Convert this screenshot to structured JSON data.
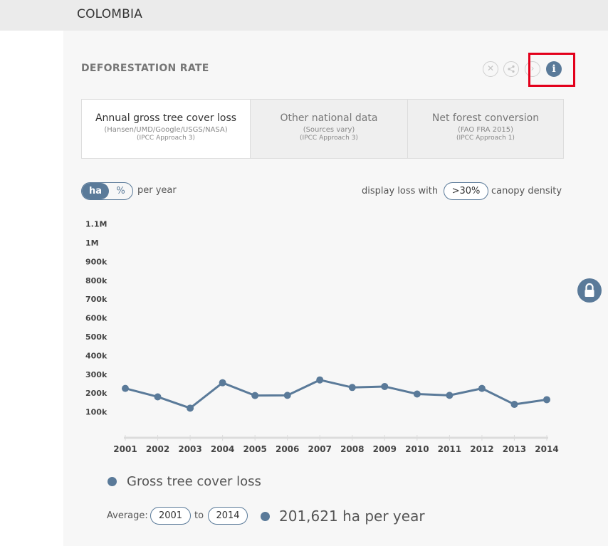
{
  "header": {
    "country": "COLOMBIA"
  },
  "widget": {
    "title": "DEFORESTATION RATE",
    "controls": [
      {
        "name": "close-icon",
        "glyph": "✕"
      },
      {
        "name": "share-icon",
        "glyph": "<"
      },
      {
        "name": "arrow-icon",
        "glyph": "›"
      },
      {
        "name": "info-icon",
        "glyph": "i"
      }
    ]
  },
  "tabs": [
    {
      "title": "Annual gross tree cover loss",
      "source": "(Hansen/UMD/Google/USGS/NASA)",
      "approach": "(IPCC Approach 3)",
      "active": true
    },
    {
      "title": "Other national data",
      "source": "(Sources vary)",
      "approach": "(IPCC Approach 3)",
      "active": false
    },
    {
      "title": "Net forest conversion",
      "source": "(FAO FRA 2015)",
      "approach": "(IPCC Approach 1)",
      "active": false
    }
  ],
  "units": {
    "ha": "ha",
    "pct": "%",
    "per_year": "per year"
  },
  "canopy": {
    "prefix": "display loss with",
    "value": ">30%",
    "suffix": "canopy density"
  },
  "chart_data": {
    "type": "line",
    "x": [
      "2001",
      "2002",
      "2003",
      "2004",
      "2005",
      "2006",
      "2007",
      "2008",
      "2009",
      "2010",
      "2011",
      "2012",
      "2013",
      "2014"
    ],
    "series": [
      {
        "name": "Gross tree cover loss",
        "values": [
          225000,
          180000,
          120000,
          255000,
          187000,
          188000,
          270000,
          230000,
          235000,
          195000,
          188000,
          225000,
          140000,
          165000
        ]
      }
    ],
    "yticks": [
      "100k",
      "200k",
      "300k",
      "400k",
      "500k",
      "600k",
      "700k",
      "800k",
      "900k",
      "1M",
      "1.1M"
    ],
    "ylim": [
      0,
      1100000
    ],
    "color": "#5a7a99"
  },
  "average": {
    "label": "Average:",
    "from": "2001",
    "to_label": "to",
    "to": "2014",
    "value": "201,621 ha per year"
  }
}
